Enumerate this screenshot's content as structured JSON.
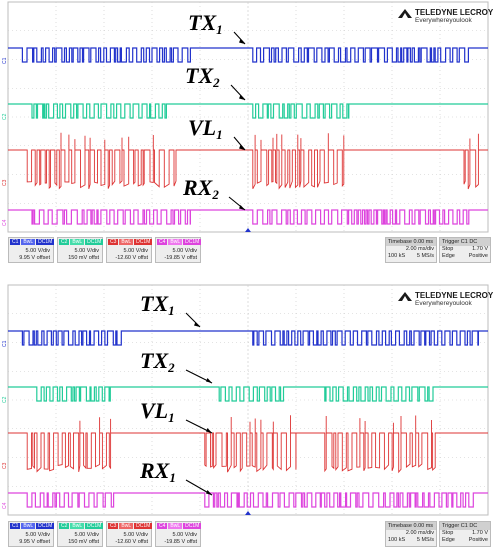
{
  "brand": {
    "name": "TELEDYNE LECROY",
    "tagline": "Everywhereyoulook"
  },
  "colors": {
    "ch1": "#2233cc",
    "ch2": "#22cc99",
    "ch3": "#dd3333",
    "ch4": "#dd44dd",
    "grid": "#c8c8c8"
  },
  "panels": [
    {
      "signals": [
        {
          "name": "TX",
          "sub": "1",
          "channel": "C1"
        },
        {
          "name": "TX",
          "sub": "2",
          "channel": "C2"
        },
        {
          "name": "VL",
          "sub": "1",
          "channel": "C3"
        },
        {
          "name": "RX",
          "sub": "2",
          "channel": "C4"
        }
      ],
      "channels": [
        {
          "id": "C1",
          "tag": "BwL",
          "coupling": "DC1M",
          "vdiv": "5.00 V/div",
          "offset": "9.95 V offset"
        },
        {
          "id": "C2",
          "tag": "BwL",
          "coupling": "DC1M",
          "vdiv": "5.00 V/div",
          "offset": "150 mV offst"
        },
        {
          "id": "C3",
          "tag": "BwL",
          "coupling": "DC1M",
          "vdiv": "5.00 V/div",
          "offset": "-12.60 V offst"
        },
        {
          "id": "C4",
          "tag": "BwL",
          "coupling": "DC1M",
          "vdiv": "5.00 V/div",
          "offset": "-19.85 V offst"
        }
      ],
      "timebase": {
        "label": "Timebase",
        "value": "0.00 ms",
        "div": "2.00 ms/div",
        "samples": "100 kS",
        "rate": "5 MS/s"
      },
      "trigger": {
        "label": "Trigger",
        "channel": "C1",
        "coupling": "DC",
        "mode": "Stop",
        "level": "1.70 V",
        "type": "Edge",
        "slope": "Positive"
      }
    },
    {
      "signals": [
        {
          "name": "TX",
          "sub": "1",
          "channel": "C1"
        },
        {
          "name": "TX",
          "sub": "2",
          "channel": "C2"
        },
        {
          "name": "VL",
          "sub": "1",
          "channel": "C3"
        },
        {
          "name": "RX",
          "sub": "1",
          "channel": "C4"
        }
      ],
      "channels": [
        {
          "id": "C1",
          "tag": "BwL",
          "coupling": "DC1M",
          "vdiv": "5.00 V/div",
          "offset": "9.95 V offset"
        },
        {
          "id": "C2",
          "tag": "BwL",
          "coupling": "DC1M",
          "vdiv": "5.00 V/div",
          "offset": "150 mV offst"
        },
        {
          "id": "C3",
          "tag": "BwL",
          "coupling": "DC1M",
          "vdiv": "5.00 V/div",
          "offset": "-12.60 V offst"
        },
        {
          "id": "C4",
          "tag": "BwL",
          "coupling": "DC1M",
          "vdiv": "5.00 V/div",
          "offset": "-19.85 V offst"
        }
      ],
      "timebase": {
        "label": "Timebase",
        "value": "0.00 ms",
        "div": "2.00 ms/div",
        "samples": "100 kS",
        "rate": "5 MS/s"
      },
      "trigger": {
        "label": "Trigger",
        "channel": "C1",
        "coupling": "DC",
        "mode": "Stop",
        "level": "1.70 V",
        "type": "Edge",
        "slope": "Positive"
      }
    }
  ]
}
